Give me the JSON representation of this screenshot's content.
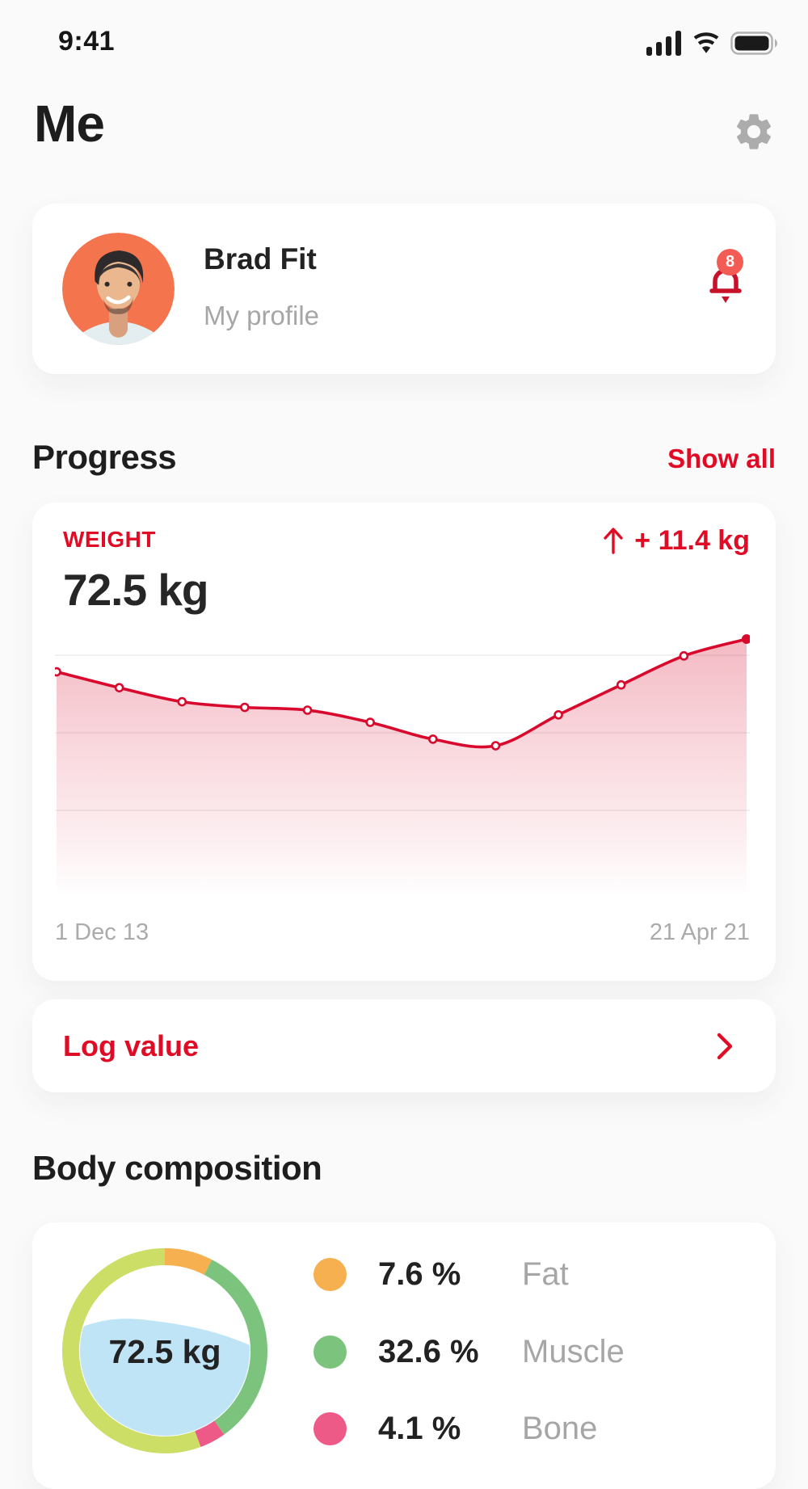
{
  "status_bar": {
    "time": "9:41"
  },
  "header": {
    "title": "Me"
  },
  "profile": {
    "name": "Brad Fit",
    "subtitle": "My profile",
    "notification_count": "8"
  },
  "progress": {
    "heading": "Progress",
    "show_all": "Show all",
    "card": {
      "metric_label": "WEIGHT",
      "current_value": "72.5 kg",
      "change": "+ 11.4 kg"
    }
  },
  "log_value": {
    "label": "Log value"
  },
  "body_composition": {
    "heading": "Body composition",
    "center_label": "72.5 kg",
    "legend": [
      {
        "value": "7.6 %",
        "label": "Fat",
        "percent": 7.6,
        "color": "#f7b04f"
      },
      {
        "value": "32.6 %",
        "label": "Muscle",
        "percent": 32.6,
        "color": "#7cc47e"
      },
      {
        "value": "4.1 %",
        "label": "Bone",
        "percent": 4.1,
        "color": "#ee5a87"
      }
    ],
    "remainder_percent": 55.7,
    "remainder_color": "#cdde66",
    "water_color": "#bee4f6"
  },
  "chart_data": {
    "type": "area",
    "title": "Weight progress",
    "unit": "kg",
    "x_start_label": "1 Dec 13",
    "x_end_label": "21 Apr 21",
    "values": [
      69.0,
      67.3,
      65.8,
      65.2,
      64.9,
      63.6,
      61.8,
      61.1,
      64.4,
      67.6,
      70.7,
      72.5
    ],
    "y_min_shown": 61.1,
    "y_max_shown": 72.5,
    "grid": true,
    "line_color": "#d8092c"
  },
  "colors": {
    "accent_red": "#e00c25",
    "bell_red": "#c8122b",
    "badge_red": "#f25c55",
    "avatar_bg": "#f3744d"
  }
}
